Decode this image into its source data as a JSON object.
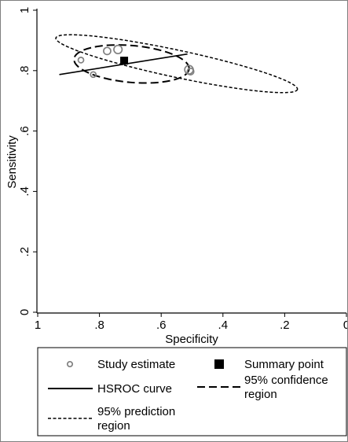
{
  "chart_data": {
    "type": "scatter",
    "xlabel": "Specificity",
    "ylabel": "Sensitivity",
    "xlim": [
      1,
      0
    ],
    "ylim": [
      0,
      1
    ],
    "x_reversed": true,
    "x_ticks": [
      1,
      0.8,
      0.6,
      0.4,
      0.2,
      0
    ],
    "x_tick_labels": [
      "1",
      ".8",
      ".6",
      ".4",
      ".2",
      "0"
    ],
    "y_ticks": [
      0,
      0.2,
      0.4,
      0.6,
      0.8,
      1
    ],
    "y_tick_labels": [
      "0",
      ".2",
      ".4",
      ".6",
      ".8",
      "1"
    ],
    "grid": false,
    "legend_position": "bottom",
    "study_estimates": [
      {
        "x": 0.86,
        "y": 0.835,
        "size": 1.0
      },
      {
        "x": 0.82,
        "y": 0.787,
        "size": 1.0
      },
      {
        "x": 0.775,
        "y": 0.865,
        "size": 1.3
      },
      {
        "x": 0.74,
        "y": 0.87,
        "size": 1.5
      },
      {
        "x": 0.51,
        "y": 0.803,
        "size": 1.55
      },
      {
        "x": 0.505,
        "y": 0.797,
        "size": 1.2
      }
    ],
    "summary_point": {
      "x": 0.72,
      "y": 0.833
    },
    "hsroc_curve": {
      "x_from": 0.93,
      "x_to": 0.515,
      "y_from": 0.787,
      "y_to": 0.855
    },
    "confidence_region": {
      "center_x": 0.696,
      "center_y": 0.822,
      "semi_axis_x": 0.187,
      "semi_axis_y": 0.061,
      "angle_deg": 5
    },
    "prediction_region": {
      "center_x": 0.55,
      "center_y": 0.823,
      "semi_axis_x": 0.4,
      "semi_axis_y": 0.045,
      "angle_deg": 12
    },
    "legend": [
      {
        "symbol": "hollow-circle",
        "label_lines": [
          "Study estimate"
        ]
      },
      {
        "symbol": "filled-square",
        "label_lines": [
          "Summary point"
        ]
      },
      {
        "symbol": "solid-line",
        "label_lines": [
          "HSROC curve"
        ]
      },
      {
        "symbol": "long-dash",
        "label_lines": [
          "95% confidence",
          "region"
        ]
      },
      {
        "symbol": "short-dash",
        "label_lines": [
          "95% prediction",
          "region"
        ]
      }
    ]
  }
}
